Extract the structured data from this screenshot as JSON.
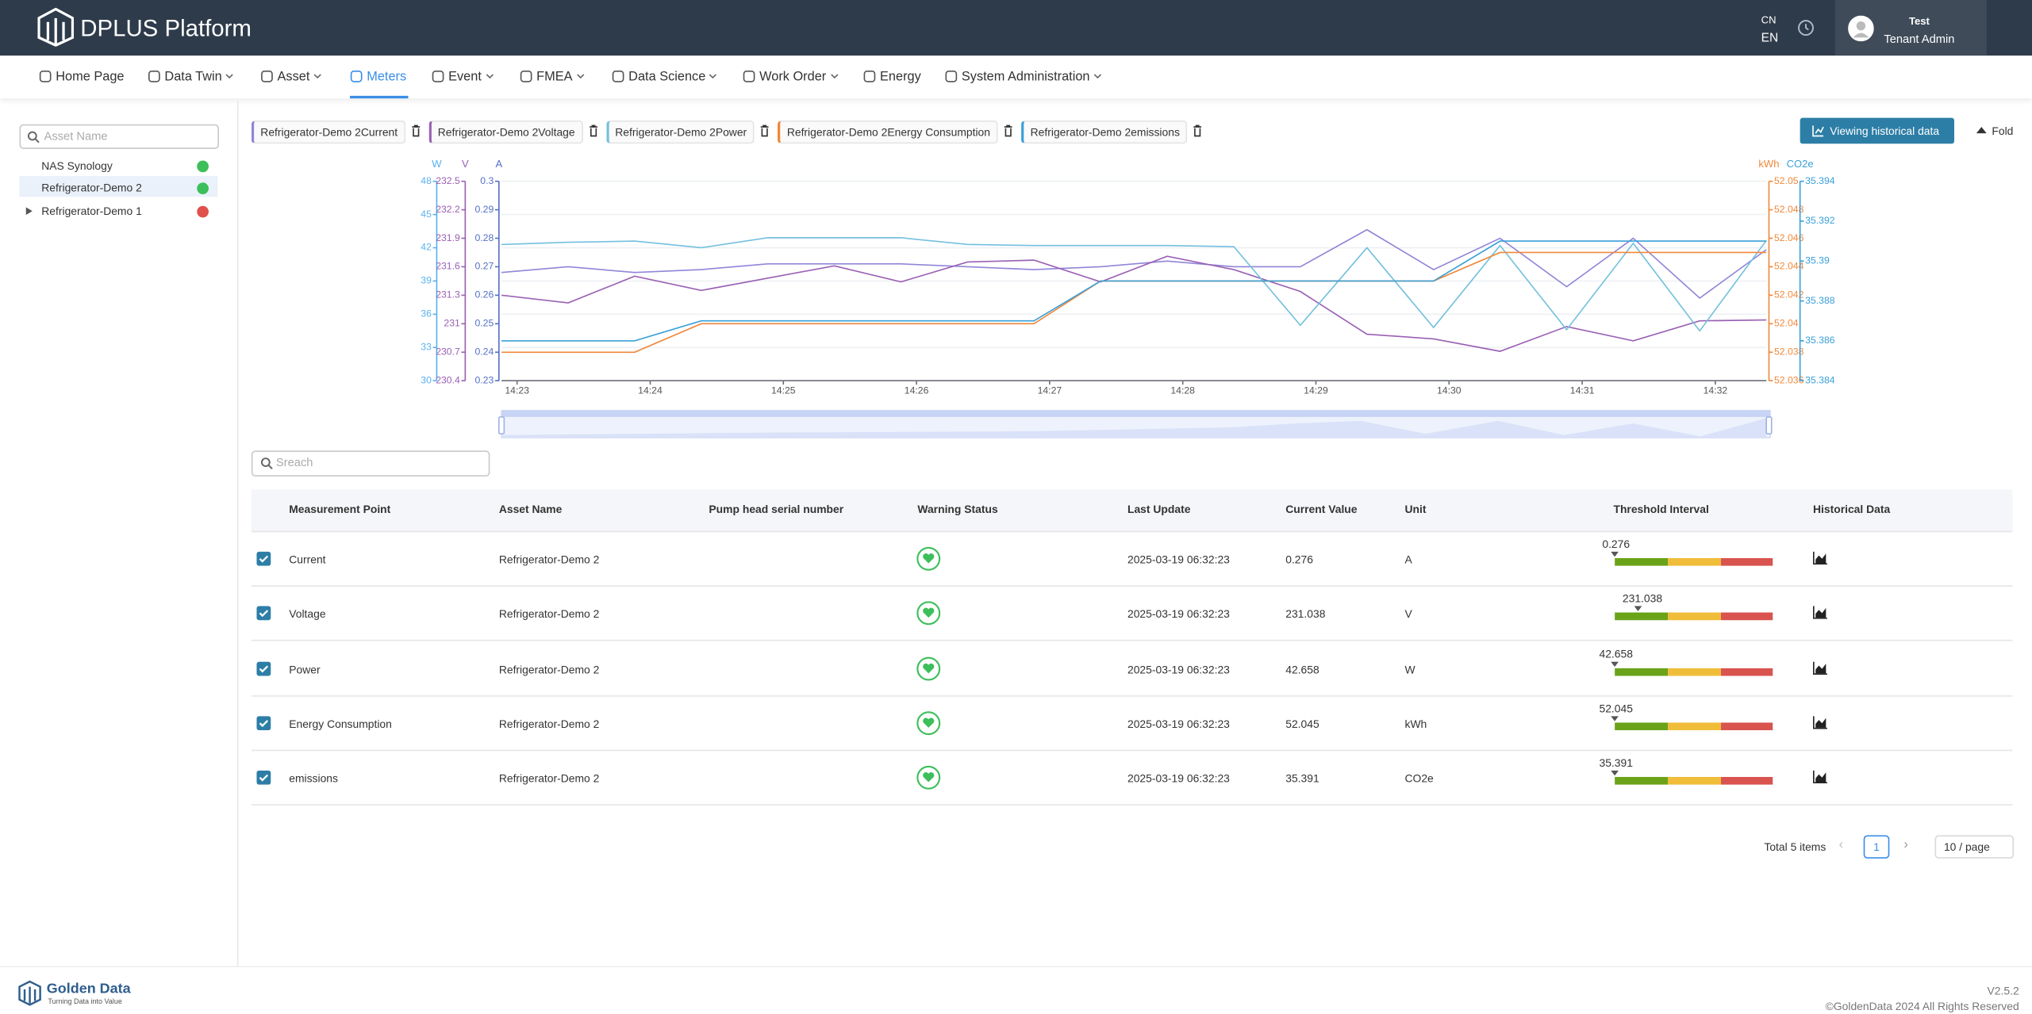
{
  "header": {
    "brand": "DPLUS Platform",
    "languages": [
      "CN",
      "EN"
    ],
    "user": {
      "name": "Test",
      "role": "Tenant Admin"
    }
  },
  "nav": {
    "items": [
      "Home Page",
      "Data Twin",
      "Asset",
      "Meters",
      "Event",
      "FMEA",
      "Data Science",
      "Work Order",
      "Energy",
      "System Administration"
    ],
    "active": 3
  },
  "sidebar": {
    "search_placeholder": "Asset Name",
    "selected": 1,
    "assets": [
      {
        "name": "NAS Synology",
        "status_color": "#3cbf5a"
      },
      {
        "name": "Refrigerator-Demo 2",
        "status_color": "#3cbf5a"
      },
      {
        "name": "Refrigerator-Demo 1",
        "status_color": "#e0514b"
      }
    ]
  },
  "buttons": {
    "history": "Viewing historical data",
    "fold": "Fold"
  },
  "chart_data": {
    "type": "line",
    "grid": true,
    "x": [
      "14:23",
      null,
      "14:24",
      null,
      "14:25",
      null,
      "14:26",
      null,
      "14:27",
      null,
      "14:28",
      null,
      "14:29",
      null,
      "14:30",
      null,
      "14:31",
      null,
      "14:32",
      null
    ],
    "axes": [
      {
        "label": "W",
        "side": "left",
        "color": "#5ab1ef",
        "lim": [
          30,
          48
        ],
        "ticks": [
          30,
          33,
          36,
          39,
          42,
          45,
          48
        ]
      },
      {
        "label": "V",
        "side": "left",
        "color": "#9a60b4",
        "lim": [
          230.4,
          232.5
        ],
        "ticks": [
          230.4,
          230.7,
          231,
          231.3,
          231.6,
          231.9,
          232.2,
          232.5
        ]
      },
      {
        "label": "A",
        "side": "left",
        "color": "#5470c6",
        "lim": [
          0.23,
          0.3
        ],
        "ticks": [
          0.23,
          0.24,
          0.25,
          0.26,
          0.27,
          0.28,
          0.29,
          0.3
        ]
      },
      {
        "label": "kWh",
        "side": "right",
        "color": "#f0883a",
        "lim": [
          52.036,
          52.05
        ],
        "ticks": [
          52.036,
          52.038,
          52.04,
          52.042,
          52.044,
          52.046,
          52.048,
          52.05
        ]
      },
      {
        "label": "CO2e",
        "side": "right",
        "color": "#3ba0d8",
        "lim": [
          35.384,
          35.394
        ],
        "ticks": [
          35.384,
          35.386,
          35.388,
          35.39,
          35.392,
          35.394
        ]
      }
    ],
    "series": [
      {
        "name": "Refrigerator-Demo 2Current",
        "axis": 2,
        "color": "#8f86d8",
        "values": [
          0.268,
          0.27,
          0.268,
          0.269,
          0.271,
          0.271,
          0.271,
          0.27,
          0.269,
          0.27,
          0.272,
          0.27,
          0.27,
          0.283,
          0.269,
          0.28,
          0.263,
          0.28,
          0.259,
          0.276
        ]
      },
      {
        "name": "Refrigerator-Demo 2Voltage",
        "axis": 1,
        "color": "#9a60b4",
        "values": [
          231.3,
          231.22,
          231.5,
          231.35,
          231.48,
          231.61,
          231.44,
          231.65,
          231.67,
          231.44,
          231.71,
          231.57,
          231.34,
          230.89,
          230.84,
          230.71,
          230.97,
          230.82,
          231.03,
          231.04
        ]
      },
      {
        "name": "Refrigerator-Demo 2Power",
        "axis": 0,
        "color": "#73c0de",
        "values": [
          42.3,
          42.5,
          42.6,
          42.0,
          42.9,
          42.9,
          42.9,
          42.3,
          42.2,
          42.2,
          42.2,
          42.1,
          35.0,
          42.0,
          34.8,
          42.2,
          34.6,
          42.4,
          34.5,
          42.658
        ]
      },
      {
        "name": "Refrigerator-Demo 2Energy Consumption",
        "axis": 3,
        "color": "#f0883a",
        "values": [
          52.038,
          52.038,
          52.038,
          52.04,
          52.04,
          52.04,
          52.04,
          52.04,
          52.04,
          52.043,
          52.043,
          52.043,
          52.043,
          52.043,
          52.043,
          52.045,
          52.045,
          52.045,
          52.045,
          52.045
        ]
      },
      {
        "name": "Refrigerator-Demo 2emissions",
        "axis": 4,
        "color": "#3ba0d8",
        "values": [
          35.386,
          35.386,
          35.386,
          35.387,
          35.387,
          35.387,
          35.387,
          35.387,
          35.387,
          35.389,
          35.389,
          35.389,
          35.389,
          35.389,
          35.389,
          35.391,
          35.391,
          35.391,
          35.391,
          35.391
        ]
      }
    ]
  },
  "table": {
    "search_placeholder": "Sreach",
    "columns": [
      "Measurement Point",
      "Asset Name",
      "Pump head serial number",
      "Warning Status",
      "Last Update",
      "Current Value",
      "Unit",
      "Threshold Interval",
      "Historical Data"
    ],
    "rows": [
      {
        "measurement": "Current",
        "asset": "Refrigerator-Demo 2",
        "last_update": "2025-03-19 06:32:23",
        "value": 0.276,
        "unit": "A",
        "checked": true
      },
      {
        "measurement": "Voltage",
        "asset": "Refrigerator-Demo 2",
        "last_update": "2025-03-19 06:32:23",
        "value": 231.038,
        "unit": "V",
        "checked": true
      },
      {
        "measurement": "Power",
        "asset": "Refrigerator-Demo 2",
        "last_update": "2025-03-19 06:32:23",
        "value": 42.658,
        "unit": "W",
        "checked": true
      },
      {
        "measurement": "Energy Consumption",
        "asset": "Refrigerator-Demo 2",
        "last_update": "2025-03-19 06:32:23",
        "value": 52.045,
        "unit": "kWh",
        "checked": true
      },
      {
        "measurement": "emissions",
        "asset": "Refrigerator-Demo 2",
        "last_update": "2025-03-19 06:32:23",
        "value": 35.391,
        "unit": "CO2e",
        "checked": true
      }
    ]
  },
  "pagination": {
    "total": "Total 5 items",
    "page": 1,
    "page_size": "10 / page"
  },
  "footer": {
    "brand": "Golden Data",
    "slogan": "Turning Data into Value",
    "version": "V2.5.2",
    "copyright": "©GoldenData 2024 All Rights Reserved"
  }
}
